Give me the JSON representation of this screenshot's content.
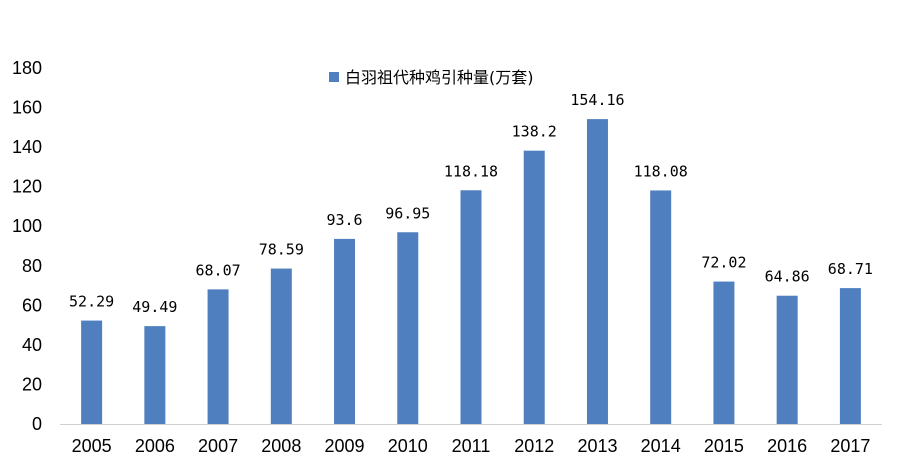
{
  "chart_data": {
    "type": "bar",
    "categories": [
      "2005",
      "2006",
      "2007",
      "2008",
      "2009",
      "2010",
      "2011",
      "2012",
      "2013",
      "2014",
      "2015",
      "2016",
      "2017"
    ],
    "series": [
      {
        "name": "白羽祖代种鸡引种量(万套)",
        "values": [
          52.29,
          49.49,
          68.07,
          78.59,
          93.6,
          96.95,
          118.18,
          138.2,
          154.16,
          118.08,
          72.02,
          64.86,
          68.71
        ],
        "labels": [
          "52.29",
          "49.49",
          "68.07",
          "78.59",
          "93.6",
          "96.95",
          "118.18",
          "138.2",
          "154.16",
          "118.08",
          "72.02",
          "64.86",
          "68.71"
        ]
      }
    ],
    "ylim": [
      0,
      180
    ],
    "yticks": [
      0,
      20,
      40,
      60,
      80,
      100,
      120,
      140,
      160,
      180
    ],
    "ytick_labels": [
      "0",
      "20",
      "40",
      "60",
      "80",
      "100",
      "120",
      "140",
      "160",
      "180"
    ],
    "title": "",
    "xlabel": "",
    "ylabel": "",
    "grid": false,
    "legend_position": "top-center",
    "bar_color": "#4F7FBE"
  }
}
